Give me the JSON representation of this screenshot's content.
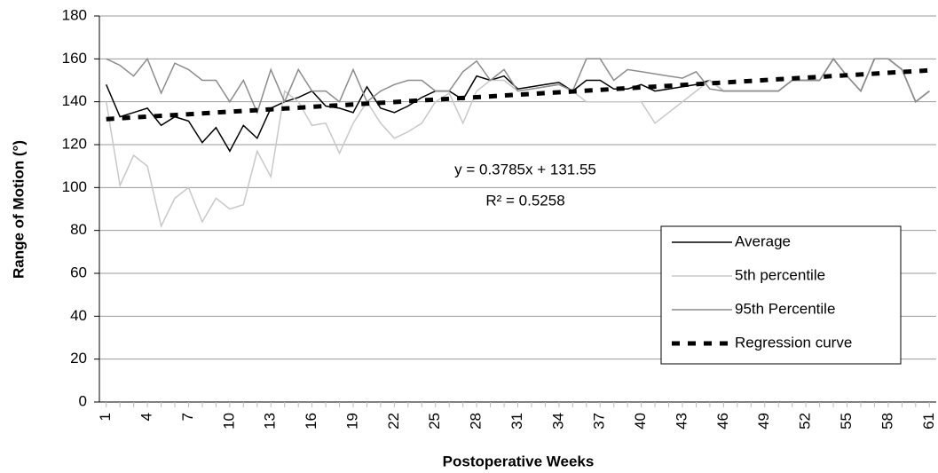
{
  "chart_data": {
    "type": "line",
    "xlabel": "Postoperative Weeks",
    "ylabel": "Range of Motion (°)",
    "annotations": [
      "y = 0.3785x + 131.55",
      "R² = 0.5258"
    ],
    "categories": [
      "1",
      null,
      null,
      "4",
      null,
      null,
      "7",
      null,
      null,
      "10",
      null,
      null,
      "13",
      null,
      null,
      "16",
      null,
      null,
      "19",
      null,
      null,
      "22",
      null,
      null,
      "25",
      null,
      null,
      "28",
      null,
      null,
      "31",
      null,
      null,
      "34",
      null,
      null,
      "37",
      null,
      null,
      "40",
      null,
      null,
      "43",
      null,
      null,
      "46",
      null,
      null,
      "49",
      null,
      null,
      "52",
      null,
      null,
      "55",
      null,
      null,
      "58",
      null,
      null,
      "61"
    ],
    "ylim": [
      0,
      180
    ],
    "yticks": [
      0,
      20,
      40,
      60,
      80,
      100,
      120,
      140,
      160,
      180
    ],
    "grid": true,
    "legend": "lower right",
    "series": [
      {
        "name": "Average",
        "color": "#000000",
        "dash": false,
        "values": [
          148,
          133,
          135,
          137,
          129,
          133,
          131,
          121,
          128,
          117,
          129,
          123,
          137,
          140,
          142,
          145,
          138,
          137,
          135,
          147,
          137,
          135,
          138,
          142,
          145,
          145,
          141,
          152,
          150,
          152,
          146,
          147,
          148,
          149,
          145,
          150,
          150,
          146,
          146,
          148,
          145,
          146,
          147,
          148,
          150,
          145,
          145,
          145,
          145,
          145,
          150,
          150,
          150,
          160,
          152,
          145,
          160,
          160,
          155,
          140,
          145
        ]
      },
      {
        "name": "5th percentile",
        "color": "#c8c8c8",
        "dash": false,
        "values": [
          140,
          101,
          115,
          110,
          82,
          95,
          100,
          84,
          95,
          90,
          92,
          117,
          105,
          145,
          140,
          129,
          130,
          116,
          130,
          140,
          130,
          123,
          126,
          130,
          140,
          144,
          130,
          145,
          150,
          150,
          145,
          146,
          147,
          148,
          145,
          140,
          140,
          140,
          140,
          140,
          130,
          135,
          140,
          145,
          150,
          145,
          145,
          145,
          145,
          145,
          150,
          150,
          150,
          160,
          152,
          145,
          160,
          160,
          155,
          140,
          145
        ]
      },
      {
        "name": "95th Percentile",
        "color": "#8c8c8c",
        "dash": false,
        "values": [
          160,
          157,
          152,
          160,
          144,
          158,
          155,
          150,
          150,
          140,
          150,
          135,
          155,
          140,
          155,
          145,
          145,
          140,
          155,
          140,
          145,
          148,
          150,
          150,
          145,
          145,
          154,
          159,
          150,
          155,
          145,
          146,
          147,
          148,
          145,
          160,
          160,
          150,
          155,
          154,
          153,
          152,
          151,
          154,
          146,
          145,
          145,
          145,
          145,
          145,
          150,
          150,
          150,
          160,
          152,
          145,
          160,
          160,
          155,
          140,
          145
        ]
      },
      {
        "name": "Regression curve",
        "color": "#000000",
        "dash": true,
        "values": [
          131.93,
          132.31,
          132.69,
          133.06,
          133.44,
          133.82,
          134.2,
          134.58,
          134.96,
          135.34,
          135.71,
          136.09,
          136.47,
          136.85,
          137.23,
          137.61,
          137.98,
          138.36,
          138.74,
          139.12,
          139.5,
          139.88,
          140.26,
          140.63,
          141.01,
          141.39,
          141.77,
          142.15,
          142.53,
          142.91,
          143.28,
          143.66,
          144.04,
          144.42,
          144.8,
          145.18,
          145.55,
          145.93,
          146.31,
          146.69,
          147.07,
          147.45,
          147.83,
          148.2,
          148.58,
          148.96,
          149.34,
          149.72,
          150.1,
          150.48,
          150.85,
          151.23,
          151.61,
          151.99,
          152.37,
          152.75,
          153.12,
          153.5,
          153.88,
          154.26,
          154.64
        ]
      }
    ]
  }
}
